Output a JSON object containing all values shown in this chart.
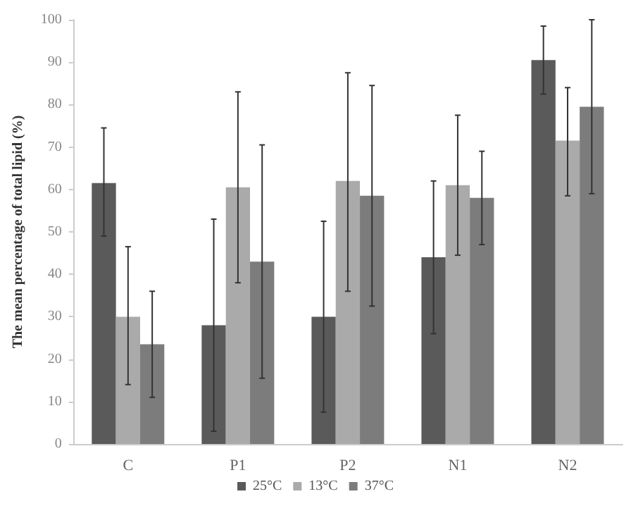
{
  "chart_data": {
    "type": "bar",
    "ylabel": "The mean percentage of total lipid (%)",
    "categories": [
      "C",
      "P1",
      "P2",
      "N1",
      "N2"
    ],
    "series": [
      {
        "name": "25°C",
        "color": "#5a5a5a",
        "values": [
          61.5,
          28,
          30,
          44,
          90.5
        ],
        "errors": [
          [
            49,
            74.5
          ],
          [
            3,
            53
          ],
          [
            7.5,
            52.5
          ],
          [
            26,
            62
          ],
          [
            82.5,
            98.5
          ]
        ]
      },
      {
        "name": "13°C",
        "color": "#aaaaaa",
        "values": [
          30,
          60.5,
          62,
          61,
          71.5
        ],
        "errors": [
          [
            14,
            46.5
          ],
          [
            38,
            83
          ],
          [
            36,
            87.5
          ],
          [
            44.5,
            77.5
          ],
          [
            58.5,
            84
          ]
        ]
      },
      {
        "name": "37°C",
        "color": "#7c7c7c",
        "values": [
          23.5,
          43,
          58.5,
          58,
          79.5
        ],
        "errors": [
          [
            11,
            36
          ],
          [
            15.5,
            70.5
          ],
          [
            32.5,
            84.5
          ],
          [
            47,
            69
          ],
          [
            59,
            100
          ]
        ]
      }
    ],
    "ylim": [
      0,
      100
    ],
    "yticks": [
      0,
      10,
      20,
      30,
      40,
      50,
      60,
      70,
      80,
      90,
      100
    ],
    "grid": false,
    "legend": "bottom"
  }
}
